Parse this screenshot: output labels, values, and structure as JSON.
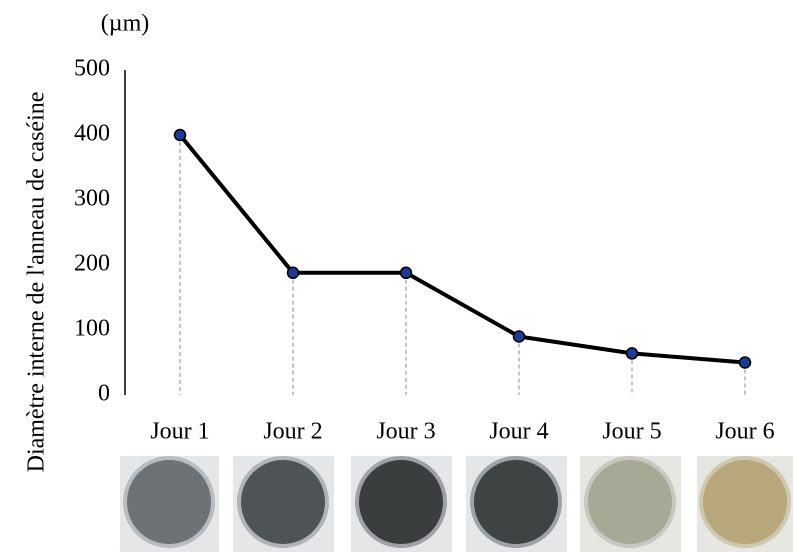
{
  "chart_data": {
    "type": "line",
    "y_label": "Diamètre interne de l'anneau de caséine",
    "unit": "(µm)",
    "categories": [
      "Jour 1",
      "Jour 2",
      "Jour 3",
      "Jour 4",
      "Jour 5",
      "Jour 6"
    ],
    "values": [
      400,
      188,
      188,
      90,
      64,
      50
    ],
    "color": "#000000",
    "marker_color": "#1f3a93",
    "ylim": [
      0,
      500
    ],
    "yticks": [
      0,
      100,
      200,
      300,
      400,
      500
    ],
    "drop_lines": true
  }
}
